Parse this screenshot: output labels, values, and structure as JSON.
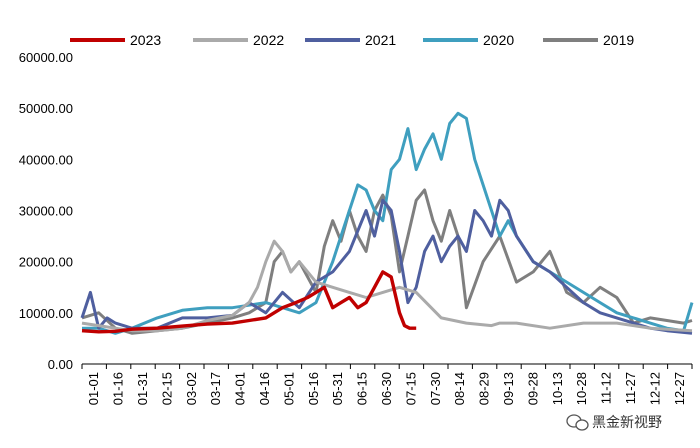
{
  "chart_data": {
    "type": "line",
    "title": "",
    "xlabel": "",
    "ylabel": "",
    "ylim": [
      0,
      60000
    ],
    "y_ticks": [
      "0.00",
      "10000.00",
      "20000.00",
      "30000.00",
      "40000.00",
      "50000.00",
      "60000.00"
    ],
    "y_tick_values": [
      0,
      10000,
      20000,
      30000,
      40000,
      50000,
      60000
    ],
    "x_ticks": [
      "01-01",
      "01-16",
      "01-31",
      "02-15",
      "03-02",
      "03-17",
      "04-01",
      "04-16",
      "05-01",
      "05-16",
      "05-31",
      "06-15",
      "06-30",
      "07-15",
      "07-30",
      "08-14",
      "08-29",
      "09-13",
      "09-28",
      "10-13",
      "10-28",
      "11-12",
      "11-27",
      "12-12",
      "12-27"
    ],
    "x_domain_days": [
      0,
      365
    ],
    "legend_position": "top",
    "series": [
      {
        "name": "2023",
        "color": "#c00000",
        "x": [
          0,
          10,
          20,
          30,
          45,
          60,
          75,
          90,
          100,
          110,
          120,
          128,
          135,
          140,
          145,
          150,
          155,
          160,
          165,
          170,
          175,
          180,
          185,
          190,
          193,
          196,
          200
        ],
        "y": [
          6500,
          6300,
          6400,
          6800,
          7000,
          7400,
          7800,
          8000,
          8500,
          9000,
          11000,
          12000,
          13000,
          14000,
          15000,
          11000,
          12000,
          13000,
          11000,
          12000,
          15000,
          18000,
          17000,
          10000,
          7500,
          7000,
          7000
        ]
      },
      {
        "name": "2022",
        "color": "#aaaaaa",
        "x": [
          0,
          10,
          20,
          30,
          45,
          60,
          75,
          90,
          100,
          105,
          110,
          115,
          120,
          125,
          130,
          140,
          150,
          160,
          170,
          180,
          190,
          200,
          215,
          230,
          245,
          250,
          260,
          280,
          300,
          320,
          340,
          365
        ],
        "y": [
          8000,
          7500,
          7000,
          6500,
          6500,
          7000,
          8500,
          9500,
          12000,
          15000,
          20000,
          24000,
          22000,
          18000,
          20000,
          16000,
          15000,
          14000,
          13000,
          14000,
          15000,
          14000,
          9000,
          8000,
          7500,
          8000,
          8000,
          7000,
          8000,
          8000,
          7000,
          6500
        ]
      },
      {
        "name": "2021",
        "color": "#4f5f9f",
        "x": [
          0,
          5,
          10,
          15,
          20,
          30,
          45,
          60,
          75,
          90,
          100,
          110,
          120,
          130,
          140,
          150,
          160,
          170,
          175,
          180,
          185,
          190,
          195,
          200,
          205,
          210,
          215,
          220,
          225,
          230,
          235,
          240,
          245,
          250,
          255,
          260,
          270,
          280,
          290,
          300,
          310,
          320,
          330,
          340,
          350,
          365
        ],
        "y": [
          9000,
          14000,
          7000,
          9000,
          8000,
          7000,
          7000,
          9000,
          9000,
          9500,
          12000,
          10000,
          14000,
          11000,
          16000,
          18000,
          22000,
          30000,
          25000,
          32000,
          30000,
          22000,
          12000,
          15000,
          22000,
          25000,
          20000,
          23000,
          25000,
          22000,
          30000,
          28000,
          25000,
          32000,
          30000,
          25000,
          20000,
          18000,
          15000,
          12000,
          10000,
          9000,
          8000,
          7000,
          6500,
          6000
        ]
      },
      {
        "name": "2020",
        "color": "#3f9fbf",
        "x": [
          0,
          10,
          20,
          30,
          45,
          60,
          75,
          90,
          100,
          110,
          120,
          130,
          140,
          150,
          155,
          160,
          165,
          170,
          175,
          180,
          185,
          190,
          195,
          200,
          205,
          210,
          215,
          220,
          225,
          230,
          235,
          240,
          245,
          250,
          255,
          260,
          270,
          280,
          290,
          300,
          310,
          320,
          330,
          340,
          350,
          360,
          365
        ],
        "y": [
          7000,
          7000,
          6000,
          7000,
          9000,
          10500,
          11000,
          11000,
          11500,
          12000,
          11000,
          10000,
          12000,
          20000,
          25000,
          30000,
          35000,
          34000,
          30000,
          28000,
          38000,
          40000,
          46000,
          38000,
          42000,
          45000,
          40000,
          47000,
          49000,
          48000,
          40000,
          35000,
          30000,
          25000,
          28000,
          25000,
          20000,
          18000,
          16000,
          14000,
          12000,
          10000,
          9000,
          8000,
          7000,
          6500,
          12000
        ]
      },
      {
        "name": "2019",
        "color": "#7f7f7f",
        "x": [
          0,
          10,
          20,
          30,
          45,
          60,
          75,
          90,
          100,
          110,
          115,
          120,
          125,
          130,
          140,
          145,
          150,
          155,
          160,
          165,
          170,
          175,
          180,
          185,
          190,
          195,
          200,
          205,
          210,
          215,
          220,
          225,
          230,
          240,
          250,
          260,
          270,
          280,
          290,
          300,
          310,
          320,
          330,
          340,
          350,
          360,
          365
        ],
        "y": [
          9000,
          10000,
          7000,
          6000,
          6500,
          7000,
          8000,
          9000,
          10000,
          12000,
          20000,
          22000,
          18000,
          20000,
          14000,
          23000,
          28000,
          24000,
          30000,
          25000,
          22000,
          30000,
          33000,
          29000,
          18000,
          25000,
          32000,
          34000,
          28000,
          24000,
          30000,
          25000,
          11000,
          20000,
          25000,
          16000,
          18000,
          22000,
          14000,
          12000,
          15000,
          13000,
          8000,
          9000,
          8500,
          8000,
          8500
        ]
      }
    ]
  },
  "watermark": {
    "text": "黑金新视野",
    "icon": "wechat-bubble-icon"
  }
}
